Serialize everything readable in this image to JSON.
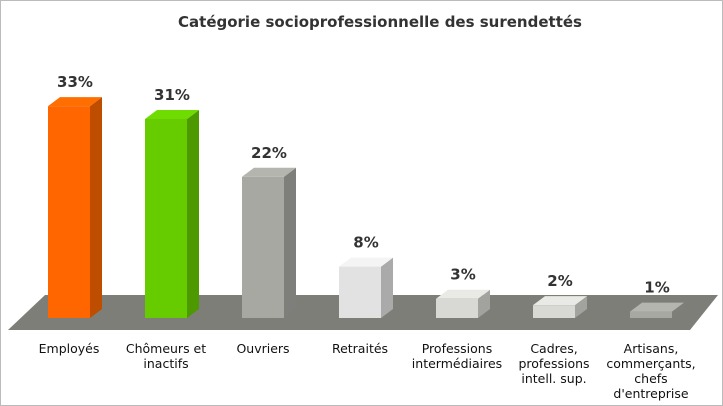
{
  "chart_data": {
    "type": "bar3d",
    "title": "Catégorie socioprofessionnelle des surendettés",
    "categories": [
      "Employés",
      "Chômeurs et inactifs",
      "Ouvriers",
      "Retraités",
      "Professions intermédiaires",
      "Cadres, professions intell. sup.",
      "Artisans, commerçants, chefs d'entreprise"
    ],
    "values": [
      33,
      31,
      22,
      8,
      3,
      2,
      1
    ],
    "value_labels": [
      "33%",
      "31%",
      "22%",
      "8%",
      "3%",
      "2%",
      "1%"
    ],
    "colors": [
      "#ff6600",
      "#66cc00",
      "#a8a8a2",
      "#e2e2e2",
      "#d8d8d4",
      "#d8d8d4",
      "#a8a8a2"
    ]
  }
}
